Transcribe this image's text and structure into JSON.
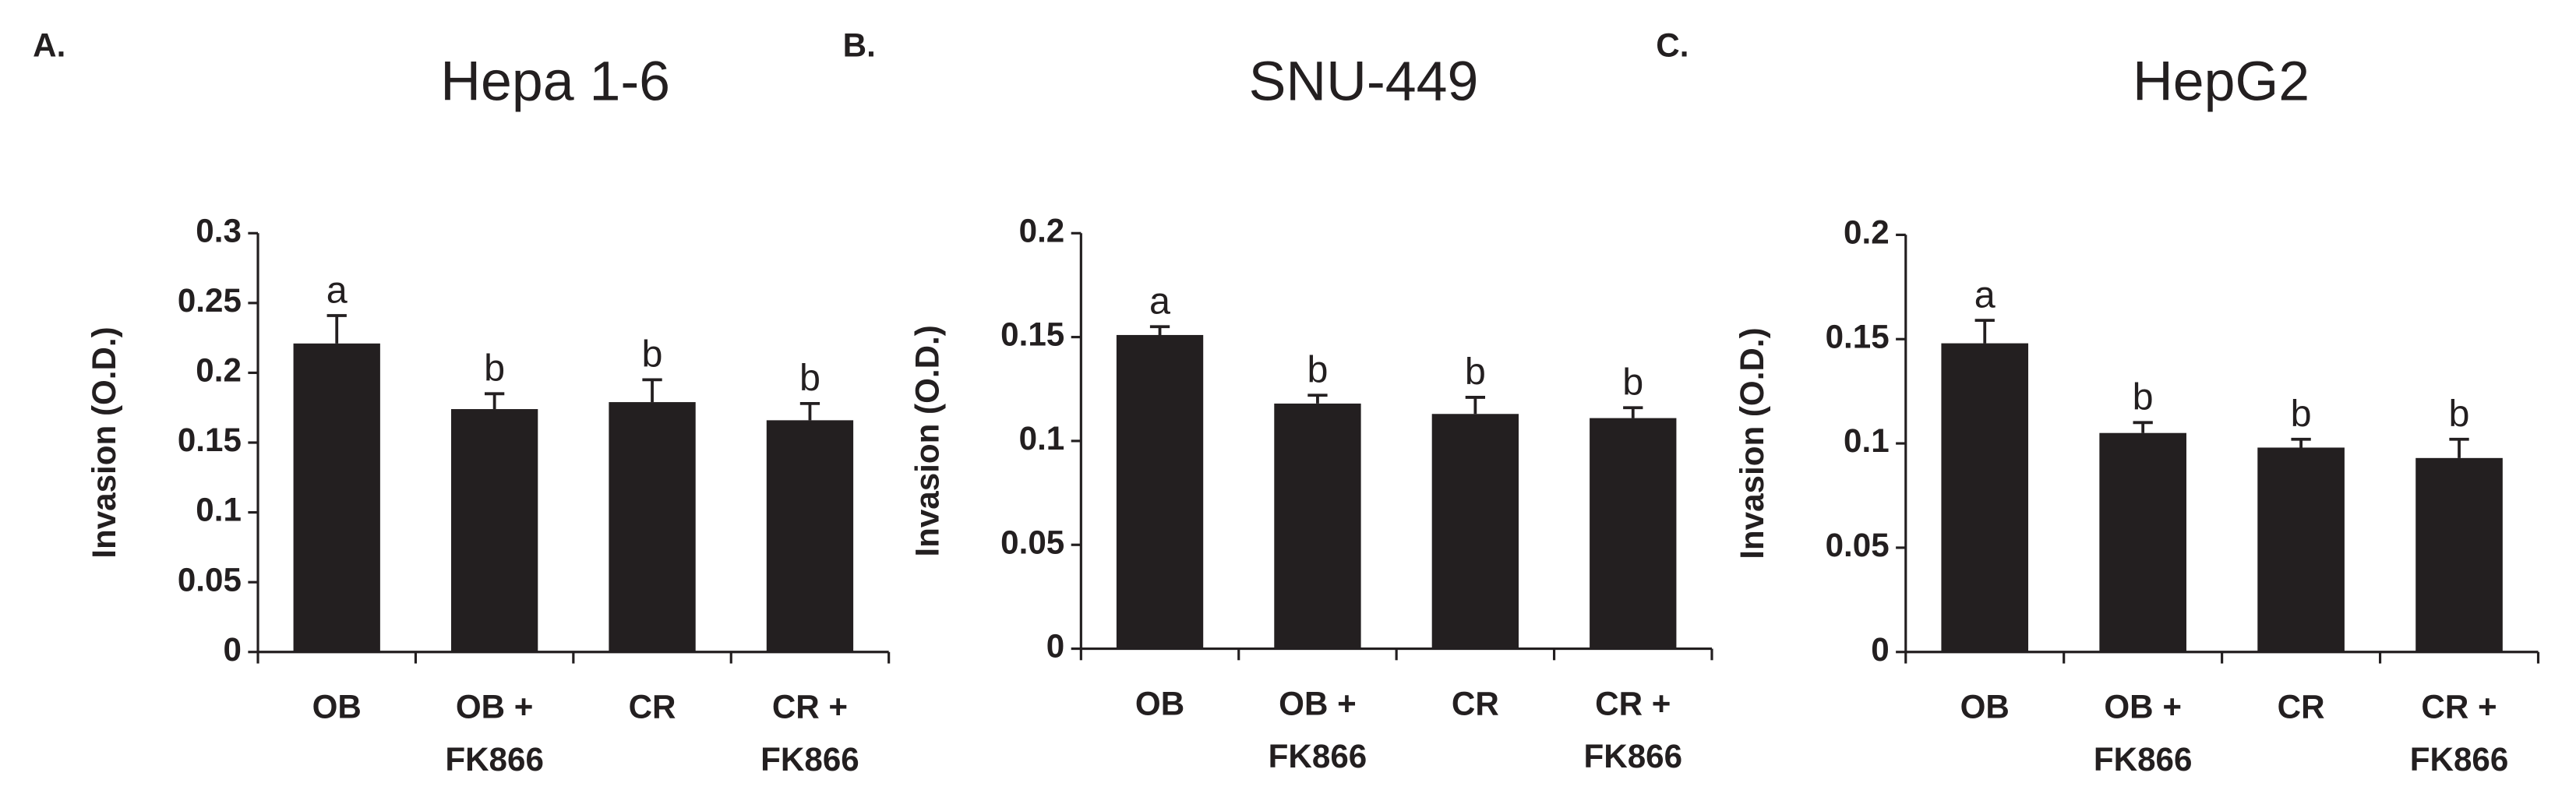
{
  "chart_data": [
    {
      "type": "bar",
      "panel_label": "A.",
      "title": "Hepa 1-6",
      "y_label": "Invasion (O.D.)",
      "categories": [
        "OB",
        [
          "OB +",
          "FK866"
        ],
        "CR",
        [
          "CR +",
          "FK866"
        ]
      ],
      "values": [
        0.221,
        0.174,
        0.179,
        0.166
      ],
      "errors": [
        0.02,
        0.011,
        0.016,
        0.012
      ],
      "annotations": [
        "a",
        "b",
        "b",
        "b"
      ],
      "color": "#231f20",
      "ylim": [
        0,
        0.3
      ],
      "yticks": [
        0,
        0.05,
        0.1,
        0.15,
        0.2,
        0.25,
        0.3
      ],
      "grid": false
    },
    {
      "type": "bar",
      "panel_label": "B.",
      "title": "SNU-449",
      "y_label": "Invasion (O.D.)",
      "categories": [
        "OB",
        [
          "OB +",
          "FK866"
        ],
        "CR",
        [
          "CR +",
          "FK866"
        ]
      ],
      "values": [
        0.151,
        0.118,
        0.113,
        0.111
      ],
      "errors": [
        0.004,
        0.004,
        0.008,
        0.005
      ],
      "annotations": [
        "a",
        "b",
        "b",
        "b"
      ],
      "color": "#231f20",
      "ylim": [
        0,
        0.2
      ],
      "yticks": [
        0,
        0.05,
        0.1,
        0.15,
        0.2
      ],
      "grid": false
    },
    {
      "type": "bar",
      "panel_label": "C.",
      "title": "HepG2",
      "y_label": "Invasion (O.D.)",
      "categories": [
        "OB",
        [
          "OB +",
          "FK866"
        ],
        "CR",
        [
          "CR +",
          "FK866"
        ]
      ],
      "values": [
        0.148,
        0.105,
        0.098,
        0.093
      ],
      "errors": [
        0.011,
        0.005,
        0.004,
        0.009
      ],
      "annotations": [
        "a",
        "b",
        "b",
        "b"
      ],
      "color": "#231f20",
      "ylim": [
        0,
        0.2
      ],
      "yticks": [
        0,
        0.05,
        0.1,
        0.15,
        0.2
      ],
      "grid": false
    }
  ]
}
